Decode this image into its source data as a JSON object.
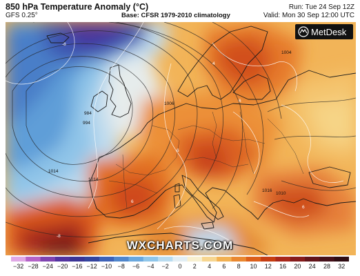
{
  "header": {
    "title": "850 hPa Temperature Anomaly (°C)",
    "model": "GFS 0.25°",
    "base": "Base: CFSR 1979-2010 climatology",
    "run": "Run: Tue 24 Sep 12Z",
    "valid": "Valid: Mon 30 Sep 12:00 UTC"
  },
  "logo": {
    "text": "MetDesk"
  },
  "watermark": "WXCHARTS.COM",
  "contour_labels": [
    "984",
    "994",
    "1014",
    "1014",
    "1016",
    "1006",
    "1004",
    "1010",
    "-8",
    "-8",
    "6",
    "6",
    "6",
    "6",
    "4"
  ],
  "legend": {
    "ticks": [
      "−32",
      "−28",
      "−24",
      "−20",
      "−16",
      "−12",
      "−10",
      "−8",
      "−6",
      "−4",
      "−2",
      "0",
      "2",
      "4",
      "6",
      "8",
      "10",
      "12",
      "16",
      "20",
      "24",
      "28",
      "32"
    ],
    "colors": [
      "#e0a8e6",
      "#b463c8",
      "#7e44b0",
      "#5234a0",
      "#3a3596",
      "#33449e",
      "#3d62b8",
      "#4f86cc",
      "#6aa8de",
      "#8fc6ea",
      "#b9dcf0",
      "#e2eef4",
      "#f8f0d0",
      "#f7d690",
      "#f2b152",
      "#ea8830",
      "#dc5f1a",
      "#c63e12",
      "#a8271a",
      "#861c1c",
      "#62141a",
      "#46111a",
      "#2e0c12"
    ]
  }
}
